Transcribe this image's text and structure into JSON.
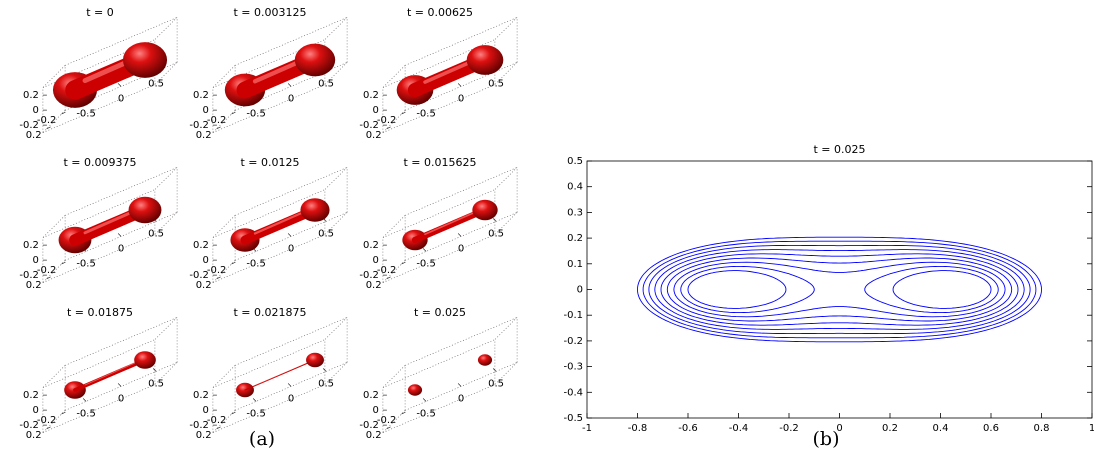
{
  "chart_data": [
    {
      "type": "surface",
      "title": "t = 0",
      "color": "#cc0000",
      "xlim": [
        -0.8,
        0.8
      ],
      "ylim": [
        -0.3,
        0.3
      ],
      "zlim": [
        -0.3,
        0.3
      ],
      "xticks": [
        -0.5,
        0,
        0.5
      ],
      "yticks": [
        -0.2,
        0.2
      ],
      "zticks": [
        -0.2,
        0,
        0.2
      ]
    },
    {
      "type": "surface",
      "title": "t = 0.003125",
      "color": "#cc0000",
      "xlim": [
        -0.8,
        0.8
      ],
      "ylim": [
        -0.3,
        0.3
      ],
      "zlim": [
        -0.3,
        0.3
      ],
      "xticks": [
        -0.5,
        0,
        0.5
      ],
      "yticks": [
        -0.2,
        0.2
      ],
      "zticks": [
        -0.2,
        0,
        0.2
      ]
    },
    {
      "type": "surface",
      "title": "t = 0.00625",
      "color": "#cc0000",
      "xlim": [
        -0.8,
        0.8
      ],
      "ylim": [
        -0.3,
        0.3
      ],
      "zlim": [
        -0.3,
        0.3
      ],
      "xticks": [
        -0.5,
        0,
        0.5
      ],
      "yticks": [
        -0.2,
        0.2
      ],
      "zticks": [
        -0.2,
        0,
        0.2
      ]
    },
    {
      "type": "surface",
      "title": "t = 0.009375",
      "color": "#cc0000",
      "xlim": [
        -0.8,
        0.8
      ],
      "ylim": [
        -0.3,
        0.3
      ],
      "zlim": [
        -0.3,
        0.3
      ],
      "xticks": [
        -0.5,
        0,
        0.5
      ],
      "yticks": [
        -0.2,
        0.2
      ],
      "zticks": [
        -0.2,
        0,
        0.2
      ]
    },
    {
      "type": "surface",
      "title": "t = 0.0125",
      "color": "#cc0000",
      "xlim": [
        -0.8,
        0.8
      ],
      "ylim": [
        -0.3,
        0.3
      ],
      "zlim": [
        -0.3,
        0.3
      ],
      "xticks": [
        -0.5,
        0,
        0.5
      ],
      "yticks": [
        -0.2,
        0.2
      ],
      "zticks": [
        -0.2,
        0,
        0.2
      ]
    },
    {
      "type": "surface",
      "title": "t = 0.015625",
      "color": "#cc0000",
      "xlim": [
        -0.8,
        0.8
      ],
      "ylim": [
        -0.3,
        0.3
      ],
      "zlim": [
        -0.3,
        0.3
      ],
      "xticks": [
        -0.5,
        0,
        0.5
      ],
      "yticks": [
        -0.2,
        0.2
      ],
      "zticks": [
        -0.2,
        0,
        0.2
      ]
    },
    {
      "type": "surface",
      "title": "t = 0.01875",
      "color": "#cc0000",
      "xlim": [
        -0.8,
        0.8
      ],
      "ylim": [
        -0.3,
        0.3
      ],
      "zlim": [
        -0.3,
        0.3
      ],
      "xticks": [
        -0.5,
        0,
        0.5
      ],
      "yticks": [
        -0.2,
        0.2
      ],
      "zticks": [
        -0.2,
        0,
        0.2
      ]
    },
    {
      "type": "surface",
      "title": "t = 0.021875",
      "color": "#cc0000",
      "xlim": [
        -0.8,
        0.8
      ],
      "ylim": [
        -0.3,
        0.3
      ],
      "zlim": [
        -0.3,
        0.3
      ],
      "xticks": [
        -0.5,
        0,
        0.5
      ],
      "yticks": [
        -0.2,
        0.2
      ],
      "zticks": [
        -0.2,
        0,
        0.2
      ]
    },
    {
      "type": "surface",
      "title": "t = 0.025",
      "color": "#cc0000",
      "xlim": [
        -0.8,
        0.8
      ],
      "ylim": [
        -0.3,
        0.3
      ],
      "zlim": [
        -0.3,
        0.3
      ],
      "xticks": [
        -0.5,
        0,
        0.5
      ],
      "yticks": [
        -0.2,
        0.2
      ],
      "zticks": [
        -0.2,
        0,
        0.2
      ]
    },
    {
      "type": "contour",
      "title": "t = 0.025",
      "color": "#0000ff",
      "xlim": [
        -1,
        1
      ],
      "ylim": [
        -0.5,
        0.5
      ],
      "xticks": [
        -1,
        -0.8,
        -0.6,
        -0.4,
        -0.2,
        0,
        0.2,
        0.4,
        0.6,
        0.8,
        1
      ],
      "yticks": [
        -0.5,
        -0.4,
        -0.3,
        -0.2,
        -0.1,
        0,
        0.1,
        0.2,
        0.3,
        0.4,
        0.5
      ]
    }
  ],
  "captions": [
    "(a)",
    "(b)"
  ]
}
